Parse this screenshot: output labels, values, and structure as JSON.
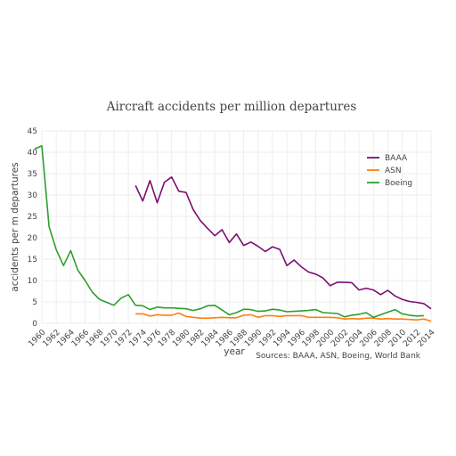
{
  "chart_data": {
    "type": "line",
    "title": "Aircraft accidents per million departures",
    "xlabel": "year",
    "ylabel": "accidents per m departures",
    "source": "Sources: BAAA, ASN, Boeing, World Bank",
    "xlim": [
      1960,
      2014
    ],
    "ylim": [
      0,
      45
    ],
    "x_ticks": [
      1960,
      1962,
      1964,
      1966,
      1968,
      1970,
      1972,
      1974,
      1976,
      1978,
      1980,
      1982,
      1984,
      1986,
      1988,
      1990,
      1992,
      1994,
      1996,
      1998,
      2000,
      2002,
      2004,
      2006,
      2008,
      2010,
      2012,
      2014
    ],
    "y_ticks": [
      0,
      5,
      10,
      15,
      20,
      25,
      30,
      35,
      40,
      45
    ],
    "grid": true,
    "legend_position": "top-right",
    "series": [
      {
        "name": "BAAA",
        "color": "#7b0f72",
        "x": [
          1973,
          1974,
          1975,
          1976,
          1977,
          1978,
          1979,
          1980,
          1981,
          1982,
          1983,
          1984,
          1985,
          1986,
          1987,
          1988,
          1989,
          1990,
          1991,
          1992,
          1993,
          1994,
          1995,
          1996,
          1997,
          1998,
          1999,
          2000,
          2001,
          2002,
          2003,
          2004,
          2005,
          2006,
          2007,
          2008,
          2009,
          2010,
          2011,
          2012,
          2013,
          2014
        ],
        "y": [
          32.2,
          28.6,
          33.4,
          28.2,
          33.0,
          34.2,
          30.9,
          30.6,
          26.6,
          24.0,
          22.2,
          20.5,
          21.9,
          18.9,
          20.9,
          18.2,
          19.0,
          18.0,
          16.8,
          17.9,
          17.3,
          13.5,
          14.8,
          13.2,
          12.0,
          11.5,
          10.6,
          8.8,
          9.6,
          9.6,
          9.5,
          7.8,
          8.2,
          7.8,
          6.7,
          7.7,
          6.4,
          5.6,
          5.1,
          4.9,
          4.6,
          3.4
        ]
      },
      {
        "name": "ASN",
        "color": "#ff7f0e",
        "x": [
          1973,
          1974,
          1975,
          1976,
          1977,
          1978,
          1979,
          1980,
          1981,
          1982,
          1983,
          1984,
          1985,
          1986,
          1987,
          1988,
          1989,
          1990,
          1991,
          1992,
          1993,
          1994,
          1995,
          1996,
          1997,
          1998,
          1999,
          2000,
          2001,
          2002,
          2003,
          2004,
          2005,
          2006,
          2007,
          2008,
          2009,
          2010,
          2011,
          2012,
          2013,
          2014
        ],
        "y": [
          2.2,
          2.2,
          1.7,
          2.0,
          1.9,
          1.9,
          2.4,
          1.6,
          1.4,
          1.2,
          1.2,
          1.3,
          1.4,
          1.3,
          1.3,
          1.9,
          2.0,
          1.4,
          1.8,
          1.8,
          1.6,
          1.8,
          1.8,
          1.8,
          1.4,
          1.4,
          1.4,
          1.4,
          1.3,
          1.0,
          1.1,
          1.0,
          1.2,
          1.2,
          1.0,
          1.1,
          1.0,
          1.0,
          0.9,
          0.8,
          1.0,
          0.5
        ]
      },
      {
        "name": "Boeing",
        "color": "#2ca02c",
        "x": [
          1959,
          1960,
          1961,
          1962,
          1963,
          1964,
          1965,
          1966,
          1967,
          1968,
          1969,
          1970,
          1971,
          1972,
          1973,
          1974,
          1975,
          1976,
          1977,
          1978,
          1979,
          1980,
          1981,
          1982,
          1983,
          1984,
          1985,
          1986,
          1987,
          1988,
          1989,
          1990,
          1991,
          1992,
          1993,
          1994,
          1995,
          1996,
          1997,
          1998,
          1999,
          2000,
          2001,
          2002,
          2003,
          2004,
          2005,
          2006,
          2007,
          2008,
          2009,
          2010,
          2011,
          2012,
          2013
        ],
        "y": [
          40.8,
          41.5,
          22.6,
          17.2,
          13.5,
          17.0,
          12.4,
          10.0,
          7.3,
          5.6,
          4.9,
          4.2,
          5.9,
          6.7,
          4.2,
          4.1,
          3.2,
          3.8,
          3.6,
          3.6,
          3.5,
          3.4,
          3.0,
          3.4,
          4.1,
          4.2,
          3.1,
          2.0,
          2.5,
          3.3,
          3.2,
          2.8,
          2.9,
          3.3,
          3.1,
          2.7,
          2.8,
          2.9,
          3.0,
          3.2,
          2.5,
          2.4,
          2.3,
          1.5,
          1.9,
          2.1,
          2.5,
          1.4,
          2.0,
          2.6,
          3.2,
          2.2,
          1.9,
          1.7,
          1.8
        ]
      }
    ]
  }
}
